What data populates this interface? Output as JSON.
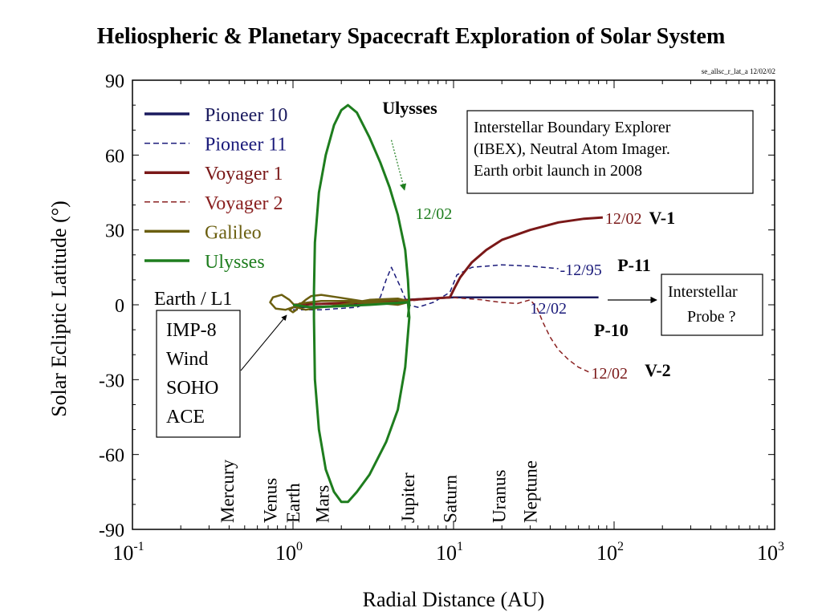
{
  "page_title": "Heliospheric & Planetary Spacecraft Exploration of Solar System",
  "file_tag": "se_allsc_r_lat_a 12/02/02",
  "chart_data": {
    "type": "line",
    "xlabel": "Radial Distance (AU)",
    "ylabel": "Solar Ecliptic Latitude (°)",
    "xscale": "log",
    "xlim": [
      0.1,
      1000
    ],
    "ylim": [
      -90,
      90
    ],
    "x_ticks": [
      {
        "value": 0.1,
        "base": "10",
        "exp": "-1"
      },
      {
        "value": 1,
        "base": "10",
        "exp": "0"
      },
      {
        "value": 10,
        "base": "10",
        "exp": "1"
      },
      {
        "value": 100,
        "base": "10",
        "exp": "2"
      },
      {
        "value": 1000,
        "base": "10",
        "exp": "3"
      }
    ],
    "y_ticks": [
      90,
      60,
      30,
      0,
      -30,
      -60,
      -90
    ],
    "grid": false,
    "legend_position": "top-left",
    "series": [
      {
        "name": "Pioneer 10",
        "color": "#1a1a5e",
        "dash": "solid",
        "width": 2.5,
        "points": [
          [
            1,
            -1
          ],
          [
            2,
            -0.5
          ],
          [
            5,
            2
          ],
          [
            10,
            3
          ],
          [
            20,
            3
          ],
          [
            40,
            3
          ],
          [
            80,
            3
          ]
        ]
      },
      {
        "name": "Pioneer 11",
        "color": "#1a1a7a",
        "dash": "dashed",
        "width": 1.5,
        "points": [
          [
            1,
            -2
          ],
          [
            1.5,
            -2
          ],
          [
            2.5,
            -1
          ],
          [
            3.5,
            3
          ],
          [
            3.8,
            10
          ],
          [
            4.1,
            15
          ],
          [
            4.6,
            8
          ],
          [
            5.2,
            0
          ],
          [
            6,
            -1
          ],
          [
            7.5,
            1
          ],
          [
            9.5,
            5
          ],
          [
            10.5,
            12
          ],
          [
            13,
            15
          ],
          [
            20,
            16
          ],
          [
            30,
            15.5
          ],
          [
            45,
            14.5
          ]
        ]
      },
      {
        "name": "Voyager 1",
        "color": "#7a1818",
        "dash": "solid",
        "width": 3,
        "points": [
          [
            1,
            0
          ],
          [
            3,
            1
          ],
          [
            5.5,
            2
          ],
          [
            9.5,
            3
          ],
          [
            10.2,
            7
          ],
          [
            11,
            11
          ],
          [
            13,
            17
          ],
          [
            16,
            22
          ],
          [
            20,
            26
          ],
          [
            30,
            30
          ],
          [
            45,
            33
          ],
          [
            65,
            34.5
          ],
          [
            85,
            35
          ]
        ]
      },
      {
        "name": "Voyager 2",
        "color": "#8a2020",
        "dash": "dashed",
        "width": 1.5,
        "points": [
          [
            1,
            0
          ],
          [
            3,
            0.5
          ],
          [
            5.2,
            1.5
          ],
          [
            9.5,
            3
          ],
          [
            15,
            2
          ],
          [
            19.5,
            1
          ],
          [
            25,
            0.5
          ],
          [
            30,
            2
          ],
          [
            33,
            -1
          ],
          [
            36,
            -7
          ],
          [
            40,
            -13
          ],
          [
            45,
            -18
          ],
          [
            52,
            -22
          ],
          [
            60,
            -25
          ],
          [
            70,
            -27
          ]
        ]
      },
      {
        "name": "Galileo",
        "color": "#6b5f10",
        "dash": "solid",
        "width": 2.5,
        "points": [
          [
            1,
            -1
          ],
          [
            0.9,
            -2
          ],
          [
            0.78,
            -1.5
          ],
          [
            0.72,
            1
          ],
          [
            0.75,
            3
          ],
          [
            0.85,
            4
          ],
          [
            0.95,
            2
          ],
          [
            1.05,
            -1
          ],
          [
            1.2,
            -2
          ],
          [
            1.5,
            -1
          ],
          [
            2,
            0
          ],
          [
            3,
            2
          ],
          [
            4.5,
            2.5
          ],
          [
            5.2,
            1.5
          ],
          [
            4.5,
            0.5
          ],
          [
            3,
            0.5
          ],
          [
            2.5,
            1
          ],
          [
            3,
            2
          ],
          [
            4.5,
            2
          ],
          [
            5.2,
            1
          ],
          [
            4.5,
            0
          ],
          [
            3,
            1
          ],
          [
            1.9,
            3
          ],
          [
            1.5,
            4
          ],
          [
            1.3,
            3.5
          ],
          [
            1.2,
            2
          ],
          [
            1.1,
            0
          ],
          [
            1.05,
            -2
          ],
          [
            1,
            -3
          ],
          [
            0.95,
            -2
          ],
          [
            1.1,
            0.5
          ],
          [
            1.5,
            1.5
          ],
          [
            2.5,
            1.5
          ],
          [
            4,
            1
          ],
          [
            5.2,
            1
          ]
        ]
      },
      {
        "name": "Ulysses",
        "color": "#1e7d1e",
        "dash": "solid",
        "width": 3,
        "points": [
          [
            1,
            0
          ],
          [
            1.3,
            -1
          ],
          [
            2,
            -0.5
          ],
          [
            3,
            0
          ],
          [
            4,
            0.5
          ],
          [
            5.2,
            1
          ],
          [
            5.3,
            -5
          ],
          [
            5,
            -25
          ],
          [
            4.5,
            -42
          ],
          [
            3.8,
            -55
          ],
          [
            3,
            -68
          ],
          [
            2.5,
            -75
          ],
          [
            2.2,
            -79
          ],
          [
            2,
            -79
          ],
          [
            1.8,
            -75
          ],
          [
            1.6,
            -66
          ],
          [
            1.45,
            -50
          ],
          [
            1.37,
            -30
          ],
          [
            1.35,
            -5
          ],
          [
            1.35,
            5
          ],
          [
            1.37,
            25
          ],
          [
            1.45,
            45
          ],
          [
            1.6,
            60
          ],
          [
            1.8,
            72
          ],
          [
            2,
            78
          ],
          [
            2.2,
            80
          ],
          [
            2.5,
            77
          ],
          [
            3,
            67
          ],
          [
            3.5,
            57
          ],
          [
            4,
            47
          ],
          [
            4.5,
            36
          ],
          [
            5,
            22
          ],
          [
            5.2,
            10
          ],
          [
            5.3,
            0
          ],
          [
            5.2,
            -5
          ]
        ]
      }
    ],
    "date_labels": [
      {
        "text": "12/02",
        "x": 5.8,
        "y": 37,
        "color": "#1e7d1e"
      },
      {
        "text": "12/02",
        "x": 88,
        "y": 35,
        "color": "#7a1818"
      },
      {
        "text": "-12/95",
        "x": 46,
        "y": 14.5,
        "color": "#1a1a7a"
      },
      {
        "text": "12/02",
        "x": 30,
        "y": -1,
        "color": "#1a1a7a"
      },
      {
        "text": "12/02",
        "x": 72,
        "y": -27,
        "color": "#7a1818"
      }
    ],
    "spacecraft_labels": [
      {
        "text": "V-1",
        "x": 165,
        "y": 35
      },
      {
        "text": "P-11",
        "x": 105,
        "y": 16
      },
      {
        "text": "P-10",
        "x": 75,
        "y": -10
      },
      {
        "text": "V-2",
        "x": 155,
        "y": -26
      },
      {
        "text": "Ulysses",
        "x": 3.6,
        "y": 79
      }
    ],
    "planets": [
      {
        "name": "Mercury",
        "r": 0.39
      },
      {
        "name": "Venus",
        "r": 0.72
      },
      {
        "name": "Earth",
        "r": 1.0
      },
      {
        "name": "Mars",
        "r": 1.52
      },
      {
        "name": "Jupiter",
        "r": 5.2
      },
      {
        "name": "Saturn",
        "r": 9.5
      },
      {
        "name": "Uranus",
        "r": 19.2
      },
      {
        "name": "Neptune",
        "r": 30.1
      }
    ],
    "earth_l1": {
      "title": "Earth / L1",
      "spacecraft": [
        "IMP-8",
        "Wind",
        "SOHO",
        "ACE"
      ]
    },
    "ibex_box": {
      "lines": [
        "Interstellar Boundary Explorer",
        "(IBEX), Neutral Atom Imager.",
        "Earth orbit  launch in 2008"
      ]
    },
    "interstellar_box": {
      "lines": [
        "Interstellar",
        "Probe ?"
      ]
    }
  }
}
